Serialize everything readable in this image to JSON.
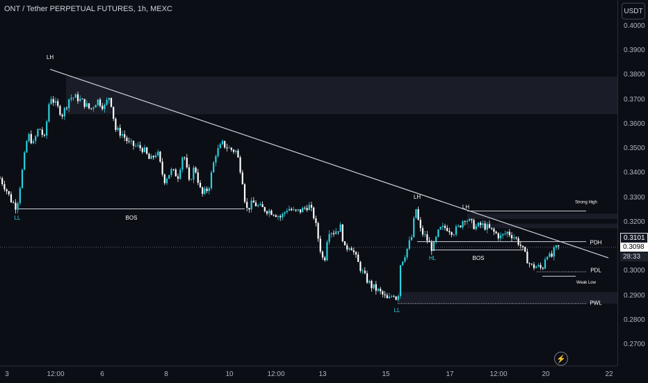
{
  "header": {
    "title": "ONT / Tether PERPETUAL FUTURES, 1h, MEXC"
  },
  "toolbar": {
    "currency_label": "USDT"
  },
  "price_axis": {
    "ticks": [
      "0.4000",
      "0.3900",
      "0.3800",
      "0.3700",
      "0.3600",
      "0.3500",
      "0.3400",
      "0.3300",
      "0.3200",
      "0.3100",
      "0.3000",
      "0.2900",
      "0.2800",
      "0.2700"
    ]
  },
  "time_axis": {
    "ticks": [
      "3",
      "12:00",
      "6",
      "8",
      "10",
      "12:00",
      "13",
      "15",
      "17",
      "12:00",
      "20",
      "22"
    ]
  },
  "price_tags": {
    "last_price": "0.3101",
    "current_price": "0.3098",
    "countdown": "28:33"
  },
  "icons": {
    "bolt": "lightning-bolt-icon"
  },
  "colors": {
    "background": "#0c0e15",
    "candle_up": "#2bd2e0",
    "candle_down": "#ffffff",
    "lines": "#d1d4dc",
    "zone": "#1f232d"
  },
  "chart_data": {
    "type": "candlestick",
    "title": "ONT / Tether PERPETUAL FUTURES, 1h, MEXC",
    "ylim": [
      0.264,
      0.408
    ],
    "xlabel": "",
    "ylabel": "",
    "x_ticks": [
      "3",
      "12:00",
      "6",
      "8",
      "10",
      "12:00",
      "13",
      "15",
      "17",
      "12:00",
      "20",
      "22"
    ],
    "y_ticks": [
      0.4,
      0.39,
      0.38,
      0.37,
      0.36,
      0.35,
      0.34,
      0.33,
      0.32,
      0.31,
      0.3,
      0.29,
      0.28,
      0.27
    ],
    "grid": false,
    "price_path": [
      [
        0,
        0.338
      ],
      [
        8,
        0.334
      ],
      [
        16,
        0.329
      ],
      [
        24,
        0.326
      ],
      [
        32,
        0.341
      ],
      [
        40,
        0.356
      ],
      [
        48,
        0.352
      ],
      [
        56,
        0.359
      ],
      [
        64,
        0.354
      ],
      [
        72,
        0.372
      ],
      [
        80,
        0.368
      ],
      [
        90,
        0.364
      ],
      [
        100,
        0.371
      ],
      [
        110,
        0.371
      ],
      [
        120,
        0.369
      ],
      [
        130,
        0.366
      ],
      [
        140,
        0.37
      ],
      [
        150,
        0.367
      ],
      [
        158,
        0.372
      ],
      [
        166,
        0.358
      ],
      [
        176,
        0.356
      ],
      [
        186,
        0.352
      ],
      [
        196,
        0.351
      ],
      [
        206,
        0.35
      ],
      [
        216,
        0.345
      ],
      [
        226,
        0.349
      ],
      [
        236,
        0.337
      ],
      [
        246,
        0.341
      ],
      [
        256,
        0.339
      ],
      [
        264,
        0.349
      ],
      [
        272,
        0.336
      ],
      [
        280,
        0.343
      ],
      [
        290,
        0.331
      ],
      [
        300,
        0.334
      ],
      [
        310,
        0.348
      ],
      [
        320,
        0.352
      ],
      [
        330,
        0.35
      ],
      [
        340,
        0.349
      ],
      [
        348,
        0.339
      ],
      [
        354,
        0.325
      ],
      [
        364,
        0.328
      ],
      [
        374,
        0.326
      ],
      [
        384,
        0.325
      ],
      [
        394,
        0.324
      ],
      [
        404,
        0.322
      ],
      [
        414,
        0.326
      ],
      [
        424,
        0.324
      ],
      [
        434,
        0.325
      ],
      [
        444,
        0.327
      ],
      [
        452,
        0.322
      ],
      [
        460,
        0.31
      ],
      [
        466,
        0.303
      ],
      [
        472,
        0.317
      ],
      [
        480,
        0.316
      ],
      [
        490,
        0.318
      ],
      [
        496,
        0.309
      ],
      [
        504,
        0.311
      ],
      [
        514,
        0.304
      ],
      [
        524,
        0.298
      ],
      [
        534,
        0.294
      ],
      [
        544,
        0.292
      ],
      [
        552,
        0.29
      ],
      [
        558,
        0.288
      ],
      [
        566,
        0.291
      ],
      [
        572,
        0.288
      ],
      [
        576,
        0.303
      ],
      [
        584,
        0.308
      ],
      [
        592,
        0.314
      ],
      [
        598,
        0.326
      ],
      [
        604,
        0.317
      ],
      [
        612,
        0.314
      ],
      [
        622,
        0.309
      ],
      [
        632,
        0.317
      ],
      [
        642,
        0.318
      ],
      [
        652,
        0.316
      ],
      [
        660,
        0.318
      ],
      [
        668,
        0.322
      ],
      [
        676,
        0.32
      ],
      [
        684,
        0.318
      ],
      [
        692,
        0.319
      ],
      [
        700,
        0.318
      ],
      [
        710,
        0.316
      ],
      [
        720,
        0.314
      ],
      [
        730,
        0.316
      ],
      [
        740,
        0.314
      ],
      [
        748,
        0.311
      ],
      [
        756,
        0.306
      ],
      [
        764,
        0.302
      ],
      [
        772,
        0.302
      ],
      [
        780,
        0.301
      ],
      [
        786,
        0.308
      ],
      [
        792,
        0.305
      ],
      [
        798,
        0.309
      ],
      [
        804,
        0.3098
      ]
    ],
    "lines": [
      {
        "name": "trendline",
        "from": [
          72,
          0.3825
        ],
        "to": [
          875,
          0.3055
        ]
      },
      {
        "name": "bos-left",
        "from": [
          27,
          0.3255
        ],
        "to": [
          352,
          0.3255
        ]
      },
      {
        "name": "bos-right",
        "from": [
          622,
          0.3087
        ],
        "to": [
          752,
          0.3087
        ]
      },
      {
        "name": "strong-high",
        "from": [
          672,
          0.3246
        ],
        "to": [
          843,
          0.3246
        ]
      },
      {
        "name": "pdh",
        "from": [
          600,
          0.3121
        ],
        "to": [
          843,
          0.3121
        ]
      },
      {
        "name": "pdl",
        "from": [
          772,
          0.2998
        ],
        "to": [
          843,
          0.2998
        ]
      },
      {
        "name": "weak-low",
        "from": [
          780,
          0.298
        ],
        "to": [
          828,
          0.298
        ]
      },
      {
        "name": "pwl",
        "from": [
          572,
          0.2868
        ],
        "to": [
          843,
          0.2868
        ]
      }
    ],
    "zones": [
      {
        "from_x": 95,
        "to_x": 888,
        "y_high": 0.3795,
        "y_low": 0.3642
      },
      {
        "from_x": 672,
        "to_x": 888,
        "y_high": 0.3236,
        "y_low": 0.3214
      },
      {
        "from_x": 672,
        "to_x": 888,
        "y_high": 0.3195,
        "y_low": 0.3176
      },
      {
        "from_x": 572,
        "to_x": 888,
        "y_high": 0.2915,
        "y_low": 0.2868
      }
    ],
    "annotations": [
      {
        "text": "LH",
        "x": 72,
        "y": 0.3866
      },
      {
        "text": "LL",
        "x": 25,
        "y": 0.3211
      },
      {
        "text": "BOS",
        "x": 189,
        "y": 0.3211
      },
      {
        "text": "LH",
        "x": 600,
        "y": 0.3296
      },
      {
        "text": "LH",
        "x": 670,
        "y": 0.3255
      },
      {
        "text": "HL",
        "x": 622,
        "y": 0.3046
      },
      {
        "text": "BOS",
        "x": 688,
        "y": 0.3046
      },
      {
        "text": "LL",
        "x": 571,
        "y": 0.2833
      },
      {
        "text": "Strong High",
        "x": 843,
        "y": 0.3278
      },
      {
        "text": "PDH",
        "x": 857,
        "y": 0.311
      },
      {
        "text": "PDL",
        "x": 857,
        "y": 0.2996
      },
      {
        "text": "Weak Low",
        "x": 843,
        "y": 0.295
      },
      {
        "text": "PWL",
        "x": 857,
        "y": 0.2863
      }
    ],
    "current_price": 0.3098,
    "last_price": 0.3101
  }
}
